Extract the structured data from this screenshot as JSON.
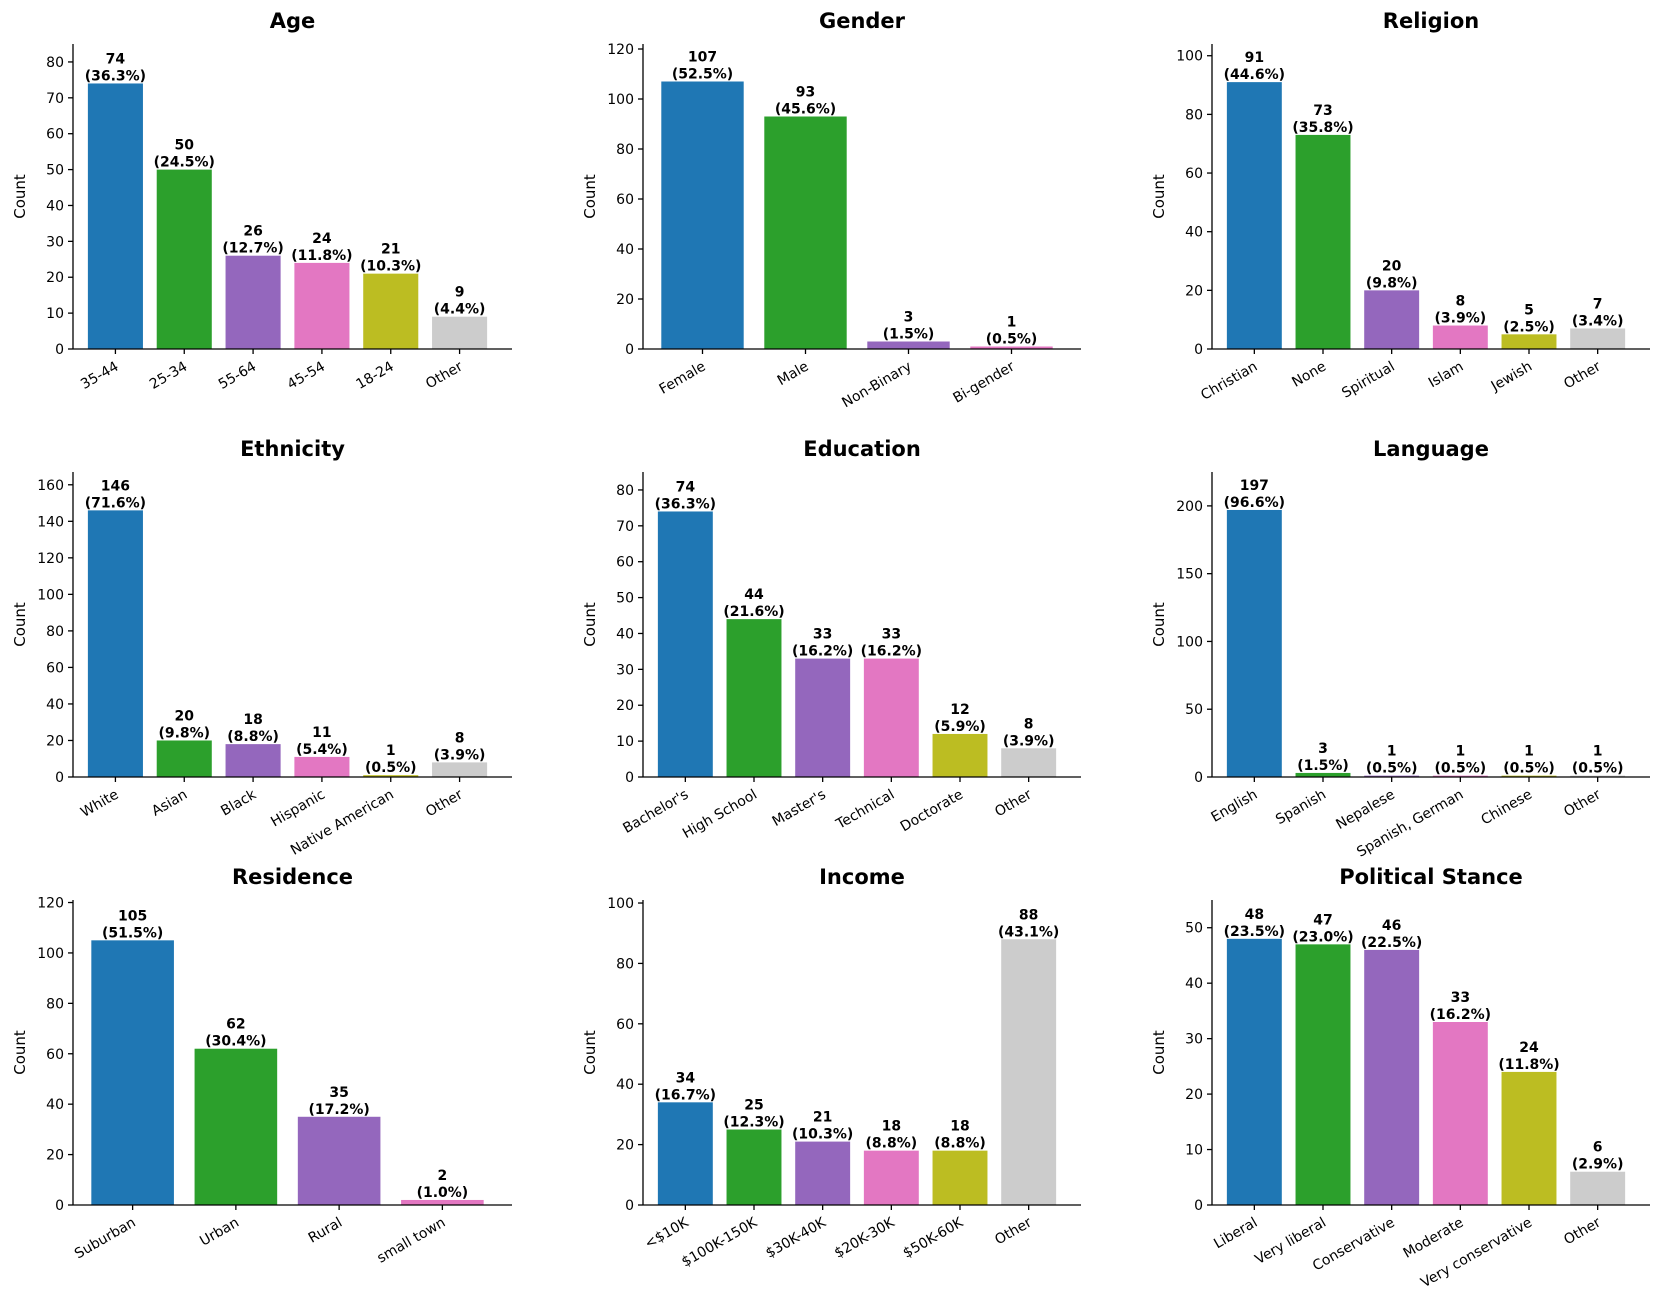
{
  "colors": {
    "palette": [
      "#1f77b4",
      "#2ca02c",
      "#9467bd",
      "#e377c2",
      "#bcbd22",
      "#cccccc"
    ]
  },
  "chart_data": [
    {
      "type": "bar",
      "title": "Age",
      "ylabel": "Count",
      "categories": [
        "35-44",
        "25-34",
        "55-64",
        "45-54",
        "18-24",
        "Other"
      ],
      "values": [
        74,
        50,
        26,
        24,
        21,
        9
      ],
      "percent_labels": [
        "(36.3%)",
        "(24.5%)",
        "(12.7%)",
        "(11.8%)",
        "(10.3%)",
        "(4.4%)"
      ],
      "ylim": [
        0,
        85
      ],
      "yticks": [
        0,
        10,
        20,
        30,
        40,
        50,
        60,
        70,
        80
      ]
    },
    {
      "type": "bar",
      "title": "Gender",
      "ylabel": "Count",
      "categories": [
        "Female",
        "Male",
        "Non-Binary",
        "Bi-gender"
      ],
      "values": [
        107,
        93,
        3,
        1
      ],
      "percent_labels": [
        "(52.5%)",
        "(45.6%)",
        "(1.5%)",
        "(0.5%)"
      ],
      "ylim": [
        0,
        122
      ],
      "yticks": [
        0,
        20,
        40,
        60,
        80,
        100,
        120
      ]
    },
    {
      "type": "bar",
      "title": "Religion",
      "ylabel": "Count",
      "categories": [
        "Christian",
        "None",
        "Spiritual",
        "Islam",
        "Jewish",
        "Other"
      ],
      "values": [
        91,
        73,
        20,
        8,
        5,
        7
      ],
      "percent_labels": [
        "(44.6%)",
        "(35.8%)",
        "(9.8%)",
        "(3.9%)",
        "(2.5%)",
        "(3.4%)"
      ],
      "ylim": [
        0,
        104
      ],
      "yticks": [
        0,
        20,
        40,
        60,
        80,
        100
      ]
    },
    {
      "type": "bar",
      "title": "Ethnicity",
      "ylabel": "Count",
      "categories": [
        "White",
        "Asian",
        "Black",
        "Hispanic",
        "Native American",
        "Other"
      ],
      "values": [
        146,
        20,
        18,
        11,
        1,
        8
      ],
      "percent_labels": [
        "(71.6%)",
        "(9.8%)",
        "(8.8%)",
        "(5.4%)",
        "(0.5%)",
        "(3.9%)"
      ],
      "ylim": [
        0,
        167
      ],
      "yticks": [
        0,
        20,
        40,
        60,
        80,
        100,
        120,
        140,
        160
      ]
    },
    {
      "type": "bar",
      "title": "Education",
      "ylabel": "Count",
      "categories": [
        "Bachelor's",
        "High School",
        "Master's",
        "Technical",
        "Doctorate",
        "Other"
      ],
      "values": [
        74,
        44,
        33,
        33,
        12,
        8
      ],
      "percent_labels": [
        "(36.3%)",
        "(21.6%)",
        "(16.2%)",
        "(16.2%)",
        "(5.9%)",
        "(3.9%)"
      ],
      "ylim": [
        0,
        85
      ],
      "yticks": [
        0,
        10,
        20,
        30,
        40,
        50,
        60,
        70,
        80
      ]
    },
    {
      "type": "bar",
      "title": "Language",
      "ylabel": "Count",
      "categories": [
        "English",
        "Spanish",
        "Nepalese",
        "Spanish, German",
        "Chinese",
        "Other"
      ],
      "values": [
        197,
        3,
        1,
        1,
        1,
        1
      ],
      "percent_labels": [
        "(96.6%)",
        "(1.5%)",
        "(0.5%)",
        "(0.5%)",
        "(0.5%)",
        "(0.5%)"
      ],
      "ylim": [
        0,
        225
      ],
      "yticks": [
        0,
        50,
        100,
        150,
        200
      ]
    },
    {
      "type": "bar",
      "title": "Residence",
      "ylabel": "Count",
      "categories": [
        "Suburban",
        "Urban",
        "Rural",
        "small town"
      ],
      "values": [
        105,
        62,
        35,
        2
      ],
      "percent_labels": [
        "(51.5%)",
        "(30.4%)",
        "(17.2%)",
        "(1.0%)"
      ],
      "ylim": [
        0,
        121
      ],
      "yticks": [
        0,
        20,
        40,
        60,
        80,
        100,
        120
      ]
    },
    {
      "type": "bar",
      "title": "Income",
      "ylabel": "Count",
      "categories": [
        "<$10K",
        "$100K-150K",
        "$30K-40K",
        "$20K-30K",
        "$50K-60K",
        "Other"
      ],
      "values": [
        34,
        25,
        21,
        18,
        18,
        88
      ],
      "percent_labels": [
        "(16.7%)",
        "(12.3%)",
        "(10.3%)",
        "(8.8%)",
        "(8.8%)",
        "(43.1%)"
      ],
      "ylim": [
        0,
        101
      ],
      "yticks": [
        0,
        20,
        40,
        60,
        80,
        100
      ]
    },
    {
      "type": "bar",
      "title": "Political Stance",
      "ylabel": "Count",
      "categories": [
        "Liberal",
        "Very liberal",
        "Conservative",
        "Moderate",
        "Very conservative",
        "Other"
      ],
      "values": [
        48,
        47,
        46,
        33,
        24,
        6
      ],
      "percent_labels": [
        "(23.5%)",
        "(23.0%)",
        "(22.5%)",
        "(16.2%)",
        "(11.8%)",
        "(2.9%)"
      ],
      "ylim": [
        0,
        55
      ],
      "yticks": [
        0,
        10,
        20,
        30,
        40,
        50
      ]
    }
  ]
}
